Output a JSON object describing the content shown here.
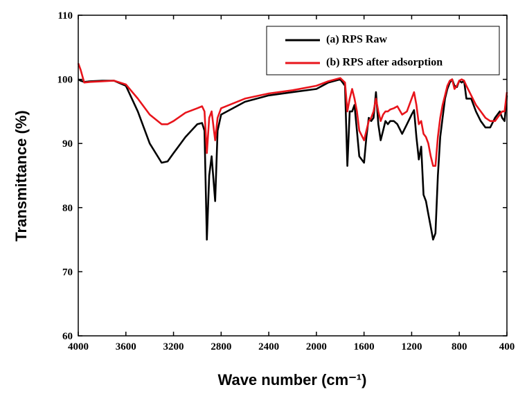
{
  "chart_data": {
    "type": "line",
    "xlabel": "Wave number (cm⁻¹)",
    "ylabel": "Transmittance (%)",
    "xlim": [
      4000,
      400
    ],
    "ylim": [
      60,
      110
    ],
    "xticks": [
      4000,
      3600,
      3200,
      2800,
      2400,
      2000,
      1600,
      1200,
      800,
      400
    ],
    "yticks": [
      60,
      70,
      80,
      90,
      100,
      110
    ],
    "legend": "upper right",
    "x": [
      4000,
      3980,
      3950,
      3900,
      3800,
      3700,
      3600,
      3500,
      3400,
      3300,
      3250,
      3200,
      3100,
      3000,
      2960,
      2940,
      2920,
      2900,
      2880,
      2850,
      2830,
      2800,
      2600,
      2400,
      2200,
      2000,
      1900,
      1800,
      1760,
      1740,
      1720,
      1700,
      1680,
      1660,
      1640,
      1600,
      1580,
      1560,
      1540,
      1520,
      1500,
      1480,
      1460,
      1440,
      1420,
      1400,
      1380,
      1350,
      1320,
      1280,
      1240,
      1200,
      1180,
      1160,
      1140,
      1120,
      1100,
      1080,
      1060,
      1040,
      1020,
      1000,
      980,
      960,
      940,
      920,
      900,
      880,
      860,
      840,
      820,
      800,
      780,
      760,
      740,
      700,
      660,
      620,
      580,
      540,
      500,
      460,
      440,
      420,
      400
    ],
    "series": [
      {
        "name": "(a) RPS Raw",
        "color": "#000000",
        "values": [
          100,
          99.8,
          99.6,
          99.7,
          99.8,
          99.8,
          99,
          95,
          90,
          87,
          87.2,
          88.5,
          91,
          93,
          93.2,
          92,
          75,
          85,
          88,
          81,
          92,
          94.5,
          96.5,
          97.5,
          98,
          98.5,
          99.5,
          100,
          99,
          86.5,
          95,
          95,
          96,
          92,
          88,
          87,
          91,
          94,
          93.5,
          94,
          98,
          93,
          90.5,
          92,
          93.5,
          93,
          93.5,
          93.5,
          93,
          91.5,
          93,
          94.5,
          95.2,
          91,
          87.5,
          89.5,
          82,
          81,
          79,
          77,
          75,
          76,
          85,
          91,
          94,
          97,
          98.5,
          99.5,
          100,
          99,
          98.8,
          99.8,
          99.5,
          99.8,
          97,
          97,
          95,
          93.5,
          92.5,
          92.5,
          94,
          95,
          94,
          93.5,
          97.5
        ]
      },
      {
        "name": "(b) RPS after adsorption",
        "color": "#e8141b",
        "values": [
          102.5,
          101.5,
          99.5,
          99.6,
          99.7,
          99.8,
          99.2,
          97,
          94.5,
          93,
          93,
          93.5,
          94.8,
          95.5,
          95.8,
          95,
          88.5,
          94,
          95,
          90.5,
          94,
          95.5,
          97,
          97.8,
          98.3,
          99,
          99.7,
          100.2,
          99.5,
          95,
          97,
          98.5,
          97,
          95,
          92,
          90.5,
          92,
          93.5,
          94,
          95,
          97,
          95,
          93.5,
          94.5,
          95,
          95,
          95.3,
          95.5,
          95.8,
          94.5,
          95,
          97,
          98,
          96,
          93,
          93.5,
          91.5,
          91,
          90,
          88,
          86.5,
          86.5,
          91,
          94,
          96,
          97.5,
          99,
          99.8,
          100,
          98.5,
          99,
          99.8,
          100,
          99.8,
          99,
          97.5,
          96,
          95,
          94,
          93.5,
          93.5,
          94.5,
          95,
          95,
          98
        ]
      }
    ]
  }
}
